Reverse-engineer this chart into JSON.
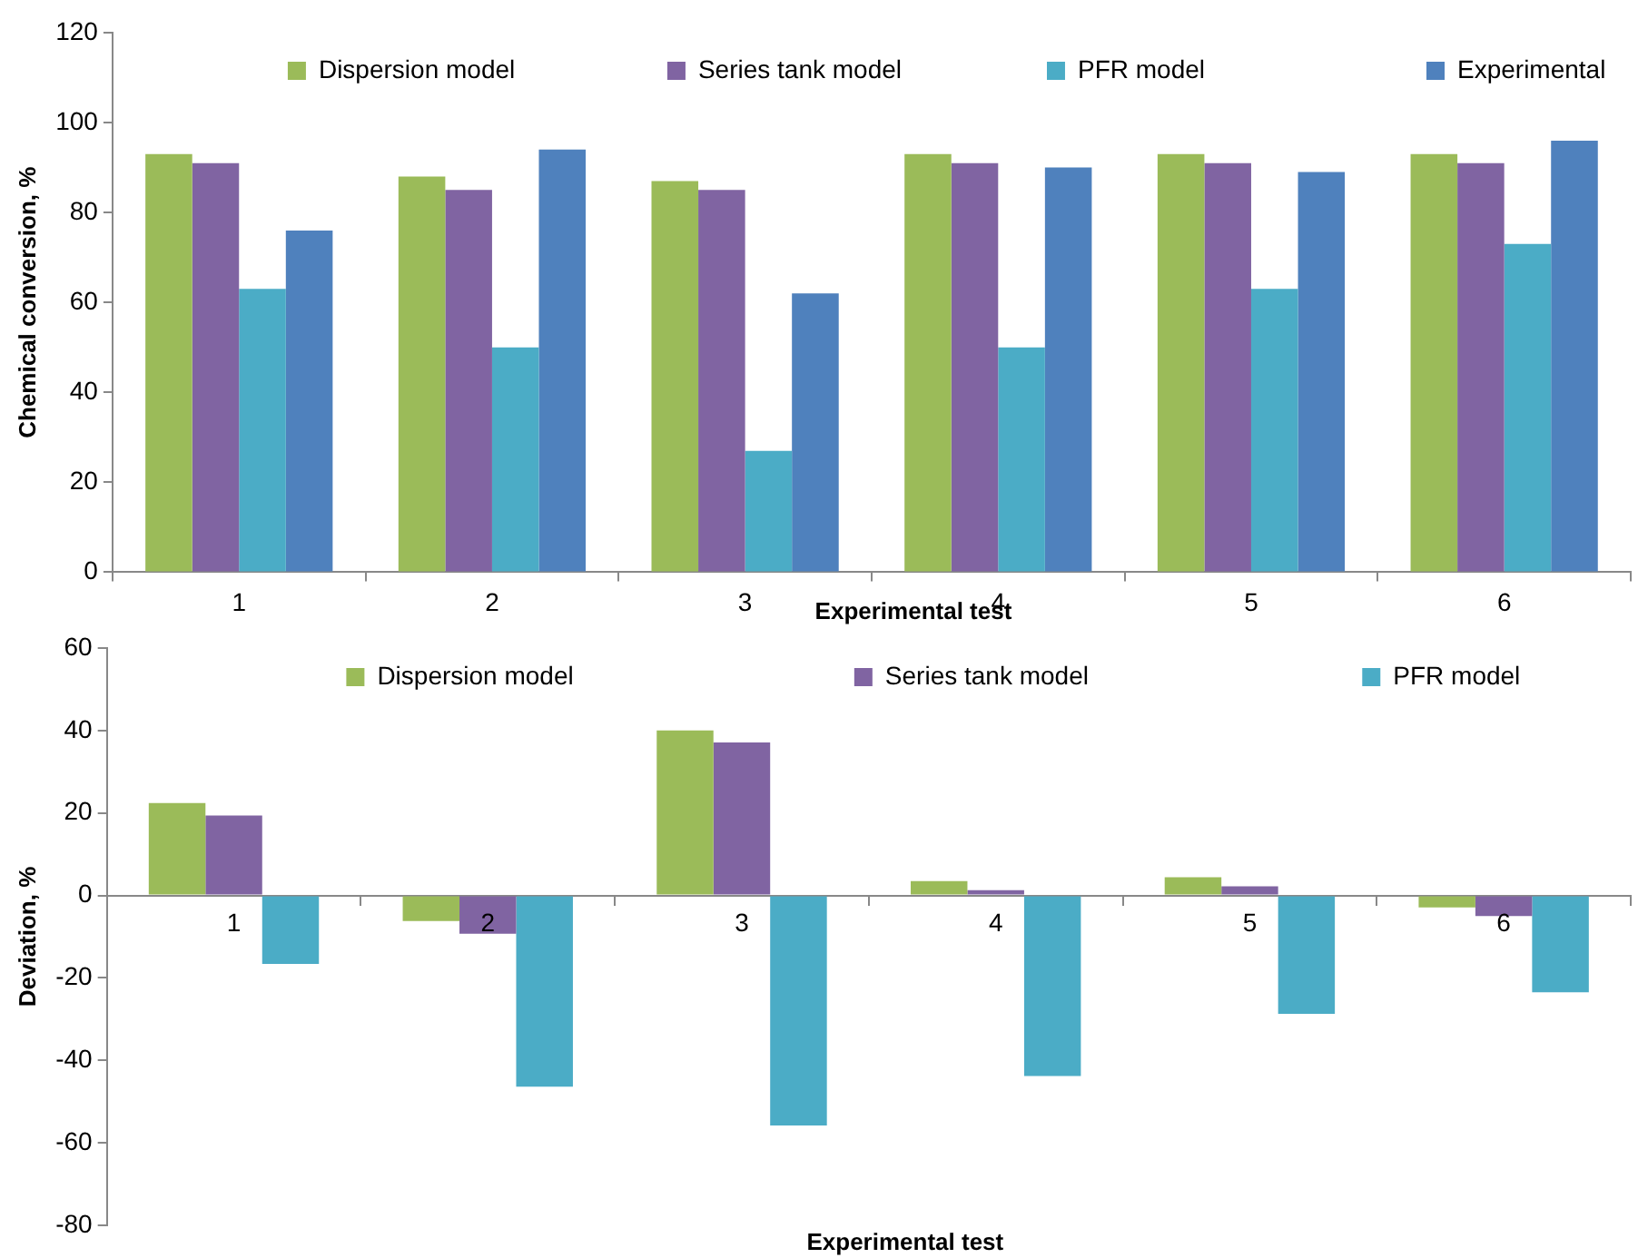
{
  "chart_data": [
    {
      "type": "bar",
      "xlabel": "Experimental test",
      "ylabel": "Chemical conversion, %",
      "categories": [
        "1",
        "2",
        "3",
        "4",
        "5",
        "6"
      ],
      "series": [
        {
          "name": "Dispersion model",
          "color": "#9bbb59",
          "values": [
            93,
            88,
            87,
            93,
            93,
            93
          ]
        },
        {
          "name": "Series tank model",
          "color": "#8064a2",
          "values": [
            91,
            85,
            85,
            91,
            91,
            91
          ]
        },
        {
          "name": "PFR model",
          "color": "#4bacc6",
          "values": [
            63,
            50,
            27,
            50,
            63,
            73
          ]
        },
        {
          "name": "Experimental",
          "color": "#4f81bd",
          "values": [
            76,
            94,
            62,
            90,
            89,
            96
          ]
        }
      ],
      "ylim": [
        0,
        120
      ],
      "yticks": [
        0,
        20,
        40,
        60,
        80,
        100,
        120
      ],
      "grid": false,
      "legend": "top"
    },
    {
      "type": "bar",
      "xlabel": "Experimental test",
      "ylabel": "Deviation, %",
      "categories": [
        "1",
        "2",
        "3",
        "4",
        "5",
        "6"
      ],
      "series": [
        {
          "name": "Dispersion model",
          "color": "#9bbb59",
          "values": [
            22.4,
            -6.2,
            40,
            3.5,
            4.4,
            -2.9
          ]
        },
        {
          "name": "Series tank model",
          "color": "#8064a2",
          "values": [
            19.4,
            -9.3,
            37.1,
            1.3,
            2.2,
            -5
          ]
        },
        {
          "name": "PFR model",
          "color": "#4bacc6",
          "values": [
            -16.6,
            -46.4,
            -55.8,
            -43.8,
            -28.7,
            -23.5
          ]
        }
      ],
      "ylim": [
        -80,
        60
      ],
      "yticks": [
        -80,
        -60,
        -40,
        -20,
        0,
        20,
        40,
        60
      ],
      "grid": false,
      "legend": "top"
    }
  ]
}
